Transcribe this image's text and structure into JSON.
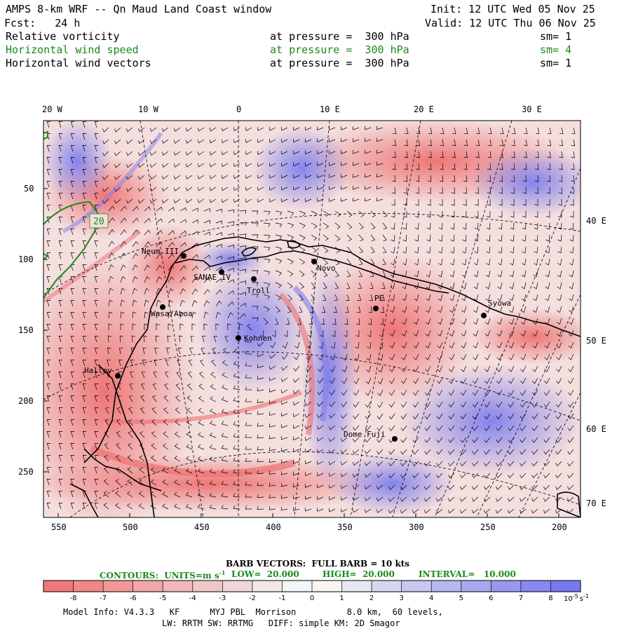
{
  "header": {
    "title": "AMPS 8-km WRF -- Qn Maud Land Coast window",
    "init": "Init: 12 UTC Wed 05 Nov 25",
    "fcst": "Fcst:   24 h",
    "valid": "Valid: 12 UTC Thu 06 Nov 25",
    "fields": [
      {
        "name": "Relative vorticity",
        "pressure": "at pressure =  300 hPa",
        "sm": "sm= 1",
        "color": "#000000"
      },
      {
        "name": "Horizontal wind speed",
        "pressure": "at pressure =  300 hPa",
        "sm": "sm= 4",
        "color": "#1a8a1a"
      },
      {
        "name": "Horizontal wind vectors",
        "pressure": "at pressure =  300 hPa",
        "sm": "sm= 1",
        "color": "#000000"
      }
    ]
  },
  "map": {
    "top_lon_labels": [
      "20 W",
      "10 W",
      "0",
      "10 E",
      "20 E",
      "30 E"
    ],
    "right_lon_labels": [
      "40 E",
      "50 E",
      "60 E",
      "70 E"
    ],
    "left_y_ticks": [
      "50",
      "100",
      "150",
      "200",
      "250"
    ],
    "bottom_x_ticks": [
      "550",
      "500",
      "450",
      "400",
      "350",
      "300",
      "250",
      "200"
    ],
    "contour_label": "20",
    "stations": [
      "Neum.III",
      "SANAE IV",
      "Troll",
      "Novo",
      "PE",
      "Syowa",
      "Wasa/Aboa",
      "Kohnen",
      "Halley",
      "Dome Fuji"
    ],
    "colors": {
      "positive": "#8a8aee",
      "negative": "#ee7a7a",
      "coast": "#000000",
      "contour": "#1a8a1a"
    }
  },
  "legend": {
    "barb": "BARB VECTORS:  FULL BARB = 10 kts",
    "contours": "CONTOURS:  UNITS=m s",
    "contours_sup": "-1",
    "low": "LOW=  20.000",
    "high": "HIGH=  20.000",
    "interval": "INTERVAL=   10.000",
    "colorbar_ticks": [
      "-8",
      "-7",
      "-6",
      "-5",
      "-4",
      "-3",
      "-2",
      "-1",
      "0",
      "1",
      "2",
      "3",
      "4",
      "5",
      "6",
      "7",
      "8"
    ],
    "colorbar_unit_base": "10",
    "colorbar_unit_exp": "-5",
    "colorbar_unit_tail": "s",
    "colorbar_unit_tail_exp": "-1"
  },
  "footer": {
    "line1": "Model Info: V4.3.3   KF      MYJ PBL  Morrison          8.0 km,  60 levels,",
    "line2": "LW: RRTM SW: RRTMG   DIFF: simple KM: 2D Smagor"
  }
}
